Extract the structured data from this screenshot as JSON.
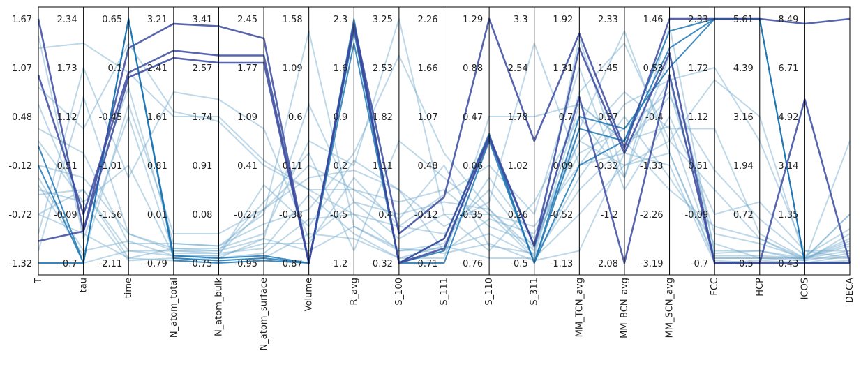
{
  "chart_data": {
    "type": "parallel_coordinates",
    "title": "",
    "grid": false,
    "legend": "none",
    "axes": [
      {
        "name": "T",
        "ticks": [
          "1.67",
          "1.07",
          "0.48",
          "-0.12",
          "-0.72",
          "-1.32"
        ],
        "range": [
          -1.32,
          1.67
        ]
      },
      {
        "name": "tau",
        "ticks": [
          "2.34",
          "1.73",
          "1.12",
          "0.51",
          "-0.09",
          "-0.7"
        ],
        "range": [
          -0.7,
          2.34
        ]
      },
      {
        "name": "time",
        "ticks": [
          "0.65",
          "0.1",
          "-0.45",
          "-1.01",
          "-1.56",
          "-2.11"
        ],
        "range": [
          -2.11,
          0.65
        ]
      },
      {
        "name": "N_atom_total",
        "ticks": [
          "3.21",
          "2.41",
          "1.61",
          "0.81",
          "0.01",
          "-0.79"
        ],
        "range": [
          -0.79,
          3.21
        ]
      },
      {
        "name": "N_atom_bulk",
        "ticks": [
          "3.41",
          "2.57",
          "1.74",
          "0.91",
          "0.08",
          "-0.75"
        ],
        "range": [
          -0.75,
          3.41
        ]
      },
      {
        "name": "N_atom_surface",
        "ticks": [
          "2.45",
          "1.77",
          "1.09",
          "0.41",
          "-0.27",
          "-0.95"
        ],
        "range": [
          -0.95,
          2.45
        ]
      },
      {
        "name": "Volume",
        "ticks": [
          "1.58",
          "1.09",
          "0.6",
          "0.11",
          "-0.38",
          "-0.87"
        ],
        "range": [
          -0.87,
          1.58
        ]
      },
      {
        "name": "R_avg",
        "ticks": [
          "2.3",
          "1.6",
          "0.9",
          "0.2",
          "-0.5",
          "-1.2"
        ],
        "range": [
          -1.2,
          2.3
        ]
      },
      {
        "name": "S_100",
        "ticks": [
          "3.25",
          "2.53",
          "1.82",
          "1.11",
          "0.4",
          "-0.32"
        ],
        "range": [
          -0.32,
          3.25
        ]
      },
      {
        "name": "S_111",
        "ticks": [
          "2.26",
          "1.66",
          "1.07",
          "0.48",
          "-0.12",
          "-0.71"
        ],
        "range": [
          -0.71,
          2.26
        ]
      },
      {
        "name": "S_110",
        "ticks": [
          "1.29",
          "0.88",
          "0.47",
          "0.06",
          "-0.35",
          "-0.76"
        ],
        "range": [
          -0.76,
          1.29
        ]
      },
      {
        "name": "S_311",
        "ticks": [
          "3.3",
          "2.54",
          "1.78",
          "1.02",
          "0.26",
          "-0.5"
        ],
        "range": [
          -0.5,
          3.3
        ]
      },
      {
        "name": "MM_TCN_avg",
        "ticks": [
          "1.92",
          "1.31",
          "0.7",
          "0.09",
          "-0.52",
          "-1.13"
        ],
        "range": [
          -1.13,
          1.92
        ]
      },
      {
        "name": "MM_BCN_avg",
        "ticks": [
          "2.33",
          "1.45",
          "0.57",
          "-0.32",
          "-1.2",
          "-2.08"
        ],
        "range": [
          -2.08,
          2.33
        ]
      },
      {
        "name": "MM_SCN_avg",
        "ticks": [
          "1.46",
          "0.53",
          "-0.4",
          "-1.33",
          "-2.26",
          "-3.19"
        ],
        "range": [
          -3.19,
          1.46
        ]
      },
      {
        "name": "FCC",
        "ticks": [
          "2.33",
          "1.72",
          "1.12",
          "0.51",
          "-0.09",
          "-0.7"
        ],
        "range": [
          -0.7,
          2.33
        ]
      },
      {
        "name": "HCP",
        "ticks": [
          "5.61",
          "4.39",
          "3.16",
          "1.94",
          "0.72",
          "-0.5"
        ],
        "range": [
          -0.5,
          5.61
        ]
      },
      {
        "name": "ICOS",
        "ticks": [
          "8.49",
          "6.71",
          "4.92",
          "3.14",
          "1.35",
          "-0.43"
        ],
        "range": [
          -0.43,
          8.49
        ]
      },
      {
        "name": "DECA",
        "ticks": [],
        "range": [
          0,
          1
        ]
      }
    ],
    "classes": [
      {
        "color": "#6fa8cb",
        "opacity": 0.45,
        "width": 2
      },
      {
        "color": "#1f77b4",
        "opacity": 0.85,
        "width": 2
      },
      {
        "color": "#3a4a9f",
        "opacity": 0.85,
        "width": 2.6
      }
    ],
    "lines": [
      {
        "c": 0,
        "v": [
          0.55,
          0.45,
          0.08,
          0.08,
          0.07,
          0.16,
          0.22,
          0.45,
          0.85,
          0.45,
          0.22,
          0.03,
          0.3,
          0.48,
          0.68,
          0.38,
          0.18,
          0.03,
          0.14
        ]
      },
      {
        "c": 0,
        "v": [
          0.88,
          0.9,
          0.78,
          0.6,
          0.6,
          0.42,
          0.3,
          0.3,
          0.25,
          0.3,
          0.15,
          0.08,
          0.5,
          0.7,
          0.55,
          0.55,
          0.12,
          0.02,
          0.08
        ]
      },
      {
        "c": 0,
        "v": [
          0.32,
          0.03,
          0.65,
          0.12,
          0.12,
          0.22,
          0.35,
          0.38,
          0.3,
          0.15,
          0.25,
          0.9,
          0.4,
          0.45,
          0.75,
          0.8,
          0.5,
          0.05,
          0.05
        ]
      },
      {
        "c": 0,
        "v": [
          0.2,
          0.12,
          0.02,
          0.01,
          0.02,
          0.1,
          0.65,
          0.25,
          0.1,
          0.2,
          0.05,
          0.25,
          0.6,
          0.35,
          0.85,
          0.05,
          0.05,
          0.02,
          0.02
        ]
      },
      {
        "c": 0,
        "v": [
          0.72,
          0.55,
          0.9,
          0.62,
          0.58,
          0.4,
          0.3,
          0.2,
          0.15,
          0.28,
          0.4,
          0.2,
          0.8,
          0.3,
          0.6,
          0.2,
          0.25,
          0.05,
          0.02
        ]
      },
      {
        "c": 0,
        "v": [
          0.12,
          0.8,
          0.35,
          0.7,
          0.67,
          0.55,
          0.1,
          0.25,
          0.2,
          0.25,
          0.22,
          0.05,
          0.7,
          0.9,
          0.5,
          0.3,
          0.1,
          0.02,
          0.1
        ]
      },
      {
        "c": 0,
        "v": [
          0.65,
          0.2,
          0.72,
          0.08,
          0.07,
          0.2,
          0.95,
          0.15,
          0.05,
          0.08,
          0.35,
          0.1,
          0.45,
          0.55,
          0.7,
          0.12,
          0.08,
          0.02,
          0.2
        ]
      },
      {
        "c": 0,
        "v": [
          0.4,
          0.35,
          0.12,
          0.05,
          0.05,
          0.25,
          0.45,
          0.05,
          0.5,
          0.35,
          0.2,
          0.02,
          0.35,
          0.6,
          0.35,
          0.08,
          0.02,
          0.01,
          0.5
        ]
      },
      {
        "c": 0,
        "v": [
          0.05,
          0.68,
          0.12,
          0.06,
          0.06,
          0.12,
          0.5,
          0.4,
          1.0,
          0.2,
          0.2,
          0.15,
          0.4,
          0.65,
          0.75,
          0.02,
          0.02,
          0.02,
          0.2
        ]
      },
      {
        "c": 0,
        "v": [
          0.93,
          0.1,
          0.6,
          0.04,
          0.04,
          0.06,
          0.28,
          0.12,
          0.02,
          0.02,
          0.6,
          0.6,
          0.65,
          0.5,
          0.3,
          0.15,
          0.1,
          0.01,
          0.12
        ]
      },
      {
        "c": 0,
        "v": [
          0.28,
          0.3,
          0.05,
          0.03,
          0.03,
          0.32,
          0.15,
          0.42,
          0.3,
          0.05,
          0.18,
          0.12,
          0.5,
          0.4,
          0.5,
          0.75,
          0.6,
          0.02,
          0.07
        ]
      },
      {
        "c": 0,
        "v": [
          0.5,
          0.25,
          0.4,
          0.03,
          0.03,
          0.08,
          0.08,
          0.35,
          0.15,
          0.12,
          0.3,
          0.06,
          0.55,
          0.95,
          0.45,
          0.02,
          0.02,
          0.02,
          0.09
        ]
      },
      {
        "c": 0,
        "v": [
          0.0,
          0.0,
          0.05,
          0.05,
          0.04,
          0.22,
          0.4,
          0.3,
          0.18,
          0.4,
          0.07,
          0.04,
          0.92,
          0.35,
          0.97,
          0.04,
          0.05,
          0.01,
          0.04
        ]
      },
      {
        "c": 0,
        "v": [
          0.35,
          0.05,
          0.09,
          0.03,
          0.02,
          0.04,
          0.18,
          0.2,
          0.05,
          0.06,
          0.12,
          0.03,
          0.65,
          0.5,
          0.56,
          0.03,
          0.03,
          0.02,
          0.05
        ]
      },
      {
        "c": 0,
        "v": [
          0.2,
          0.3,
          0.02,
          0.06,
          0.05,
          0.1,
          0.05,
          0.15,
          0.06,
          0.04,
          0.08,
          0.01,
          0.05,
          0.45,
          0.4,
          0.0,
          0.01,
          0.0,
          0.03
        ]
      },
      {
        "c": 0,
        "v": [
          0.3,
          0.25,
          0.01,
          0.02,
          0.01,
          0.02,
          0.12,
          0.1,
          0.02,
          0.07,
          0.02,
          0.02,
          0.2,
          0.4,
          0.45,
          0.01,
          0.0,
          0.0,
          0.01
        ]
      },
      {
        "c": 1,
        "v": [
          0.48,
          0.0,
          1.0,
          0.01,
          0.0,
          0.01,
          0.0,
          1.0,
          0.0,
          0.0,
          0.5,
          0.0,
          0.4,
          0.5,
          0.95,
          1.0,
          1.0,
          0.0,
          0.0
        ]
      },
      {
        "c": 1,
        "v": [
          0.4,
          0.0,
          1.0,
          0.02,
          0.01,
          0.02,
          0.0,
          0.95,
          0.0,
          0.05,
          0.52,
          0.0,
          0.55,
          0.5,
          0.88,
          1.0,
          1.0,
          0.0,
          0.0
        ]
      },
      {
        "c": 1,
        "v": [
          0.0,
          0.0,
          1.0,
          0.03,
          0.02,
          0.03,
          0.0,
          0.9,
          0.0,
          0.1,
          0.53,
          0.0,
          0.6,
          0.55,
          0.8,
          1.0,
          1.0,
          0.0,
          0.0
        ]
      },
      {
        "c": 2,
        "v": [
          1.0,
          0.13,
          0.88,
          0.98,
          0.97,
          0.92,
          0.0,
          0.98,
          0.12,
          0.27,
          1.0,
          0.5,
          0.94,
          0.47,
          1.0,
          1.0,
          1.0,
          0.98,
          1.0
        ]
      },
      {
        "c": 2,
        "v": [
          0.77,
          0.2,
          0.78,
          0.87,
          0.85,
          0.85,
          0.0,
          0.98,
          0.0,
          0.1,
          0.52,
          0.07,
          0.88,
          0.45,
          0.86,
          0.0,
          0.0,
          0.0,
          0.0
        ]
      },
      {
        "c": 2,
        "v": [
          0.09,
          0.13,
          0.76,
          0.84,
          0.82,
          0.82,
          0.0,
          0.97,
          0.0,
          0.06,
          0.51,
          0.07,
          0.68,
          0.0,
          0.77,
          0.0,
          0.0,
          0.67,
          0.0
        ]
      }
    ]
  }
}
